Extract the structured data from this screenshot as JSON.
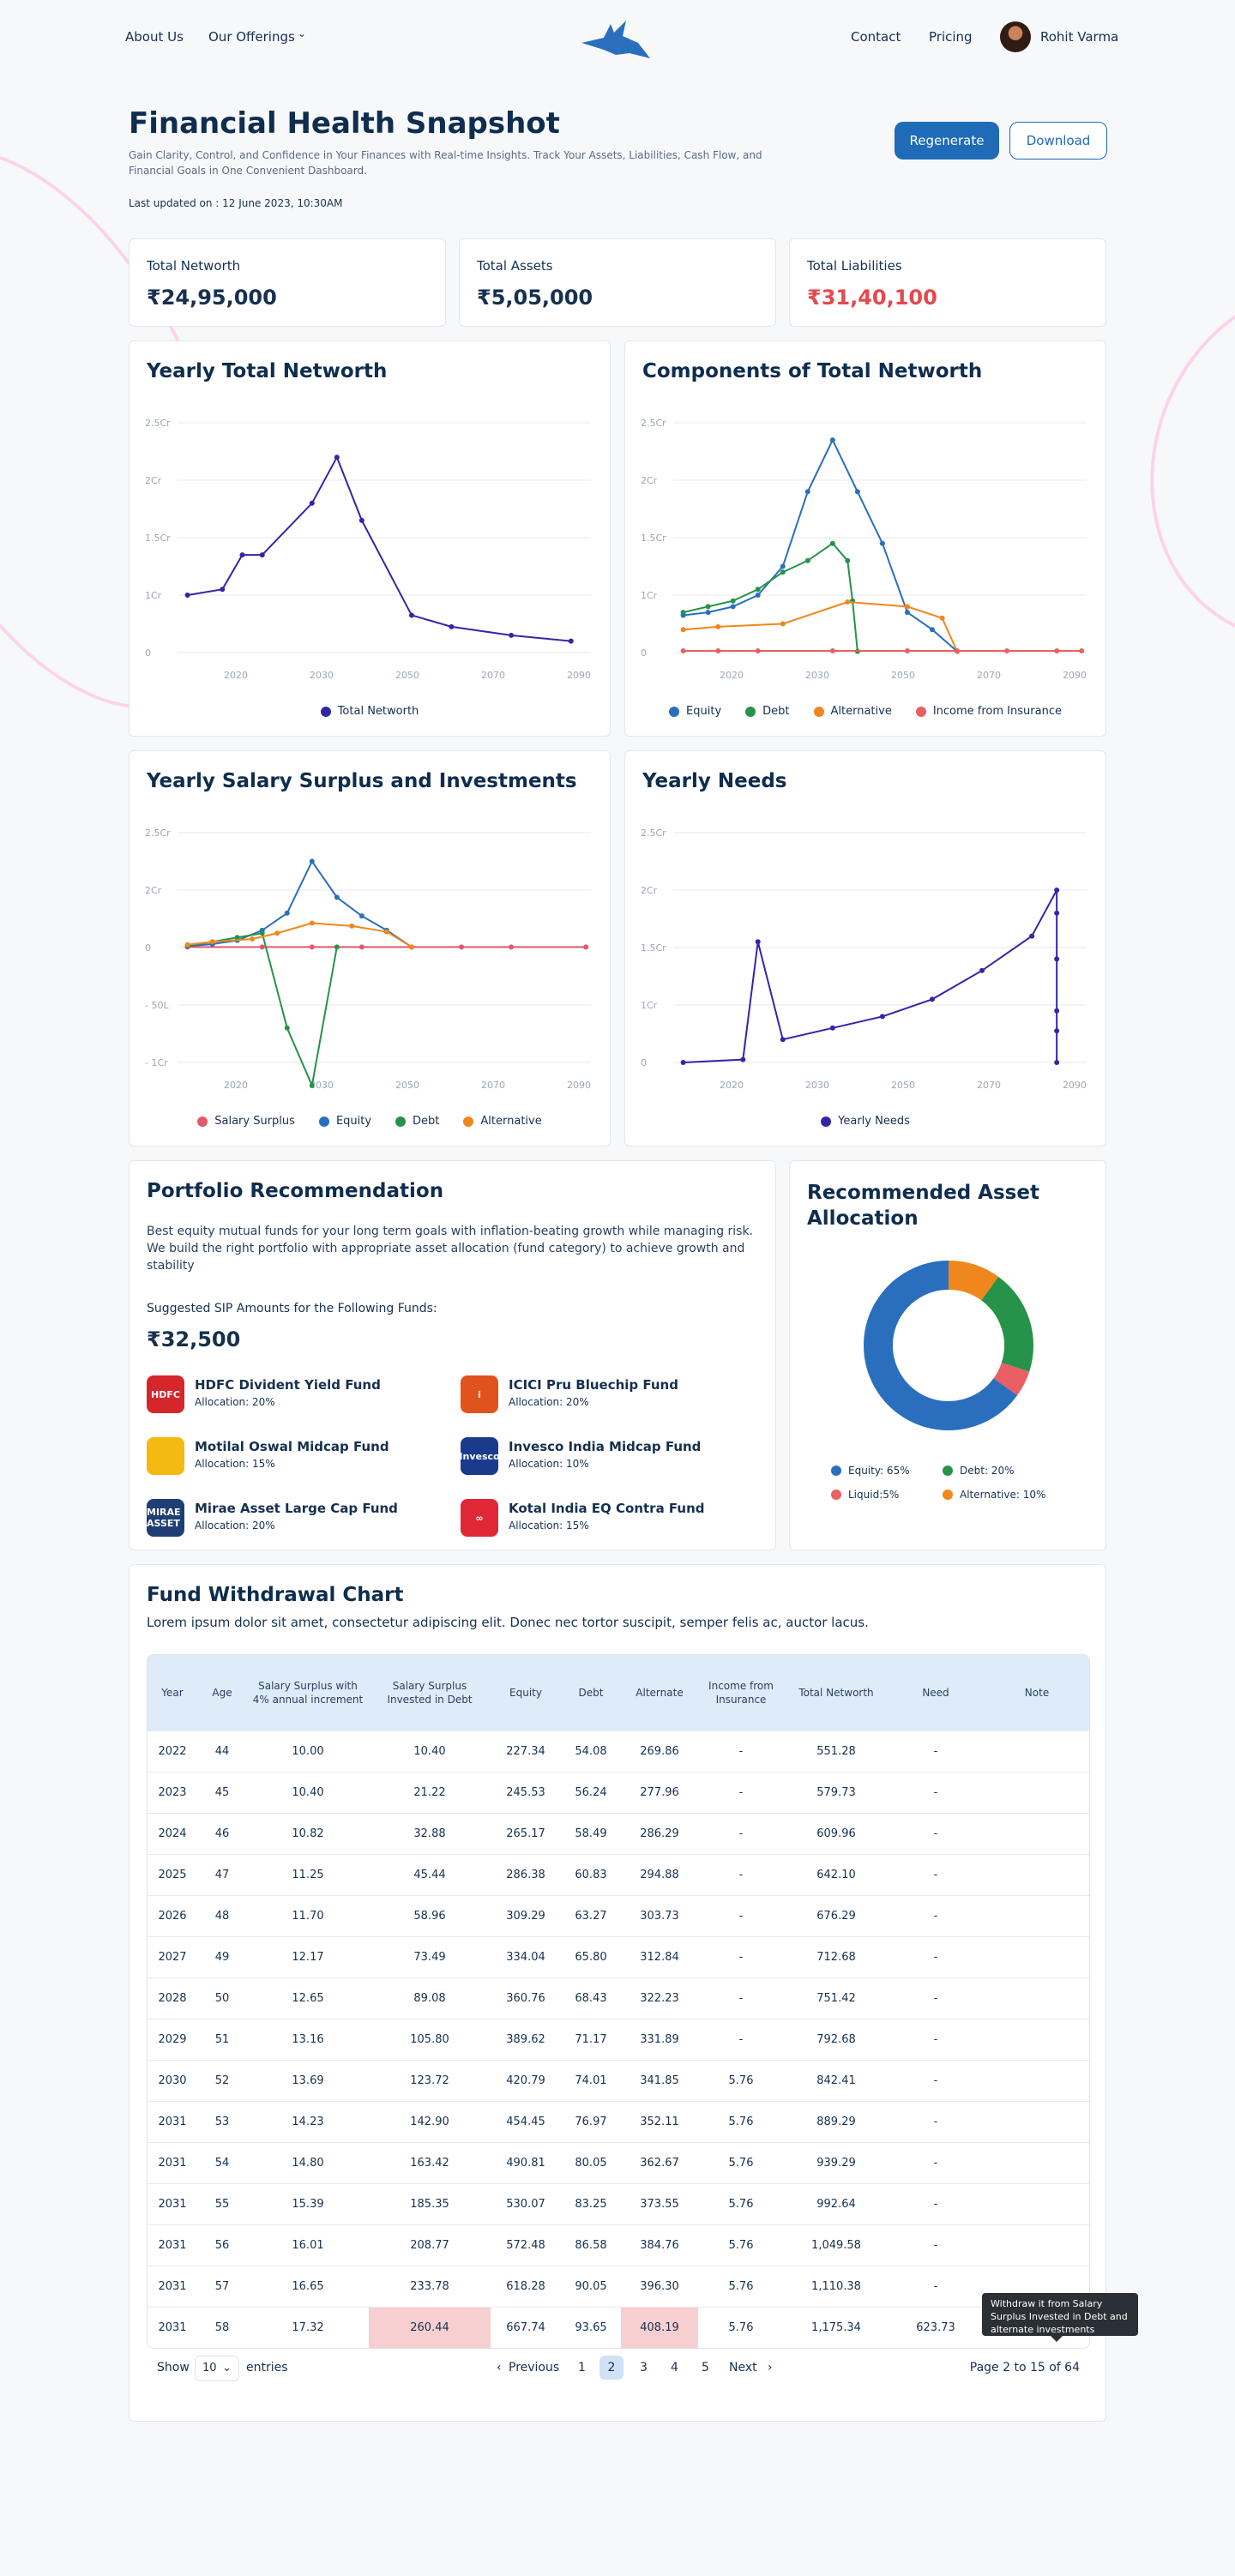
{
  "nav": {
    "about": "About Us",
    "offerings": "Our Offerings",
    "contact": "Contact",
    "pricing": "Pricing",
    "user": "Rohit Varma"
  },
  "header": {
    "title": "Financial Health Snapshot",
    "subtitle": "Gain Clarity, Control, and Confidence in Your Finances with Real-time Insights. Track Your Assets, Liabilities, Cash Flow, and Financial Goals in One Convenient Dashboard.",
    "updated": "Last updated on : 12 June 2023, 10:30AM",
    "regenerate": "Regenerate",
    "download": "Download"
  },
  "stats": [
    {
      "label": "Total Networth",
      "value": "₹24,95,000"
    },
    {
      "label": "Total Assets",
      "value": "₹5,05,000"
    },
    {
      "label": "Total Liabilities",
      "value": "₹31,40,100"
    }
  ],
  "colors": {
    "equity": "#2a6fbd",
    "debt": "#26924a",
    "alternative": "#f0871c",
    "insurance": "#e86060",
    "networth": "#3226a8",
    "surplus": "#e05a6a",
    "liquid": "#ea5f63"
  },
  "chart_data": [
    {
      "type": "line",
      "title": "Yearly Total Networth",
      "yticks": [
        "0",
        "1Cr",
        "1.5Cr",
        "2Cr",
        "2.5Cr"
      ],
      "xticks": [
        "2020",
        "2030",
        "2050",
        "2070",
        "2090"
      ],
      "series": [
        {
          "name": "Total Networth",
          "x": [
            2015,
            2022,
            2026,
            2030,
            2040,
            2045,
            2050,
            2060,
            2068,
            2080,
            2092
          ],
          "y": [
            1.0,
            1.05,
            1.35,
            1.35,
            1.8,
            2.2,
            1.65,
            0.65,
            0.45,
            0.3,
            0.2
          ]
        }
      ]
    },
    {
      "type": "line",
      "title": "Components of Total Networth",
      "yticks": [
        "0",
        "1Cr",
        "1.5Cr",
        "2Cr",
        "2.5Cr"
      ],
      "xticks": [
        "2020",
        "2030",
        "2050",
        "2070",
        "2090"
      ],
      "series": [
        {
          "name": "Equity",
          "x": [
            2015,
            2020,
            2025,
            2030,
            2035,
            2040,
            2045,
            2050,
            2055,
            2060,
            2065,
            2070
          ],
          "y": [
            0.65,
            0.7,
            0.8,
            1.0,
            1.25,
            1.9,
            2.35,
            1.9,
            1.45,
            0.7,
            0.4,
            0.02
          ]
        },
        {
          "name": "Debt",
          "x": [
            2015,
            2020,
            2025,
            2030,
            2035,
            2040,
            2045,
            2048,
            2049,
            2050
          ],
          "y": [
            0.7,
            0.8,
            0.9,
            1.05,
            1.2,
            1.3,
            1.45,
            1.3,
            0.9,
            0.02
          ]
        },
        {
          "name": "Alternative",
          "x": [
            2015,
            2022,
            2035,
            2048,
            2060,
            2067,
            2070
          ],
          "y": [
            0.4,
            0.45,
            0.5,
            0.88,
            0.8,
            0.6,
            0.02
          ]
        },
        {
          "name": "Income from Insurance",
          "x": [
            2015,
            2022,
            2030,
            2045,
            2060,
            2070,
            2080,
            2090,
            2095
          ],
          "y": [
            0.03,
            0.03,
            0.03,
            0.03,
            0.03,
            0.03,
            0.03,
            0.03,
            0.03
          ]
        }
      ]
    },
    {
      "type": "line",
      "title": "Yearly Salary Surplus and Investments",
      "yticks": [
        "- 1Cr",
        "- 50L",
        "0",
        "2Cr",
        "2.5Cr"
      ],
      "xticks": [
        "2020",
        "2030",
        "2050",
        "2070",
        "2090"
      ],
      "series": [
        {
          "name": "Salary Surplus",
          "x": [
            2015,
            2030,
            2040,
            2050,
            2060,
            2070,
            2080,
            2095
          ],
          "y": [
            0.02,
            0.02,
            0.02,
            0.02,
            0.02,
            0.02,
            0.02,
            0.02
          ]
        },
        {
          "name": "Equity",
          "x": [
            2015,
            2020,
            2025,
            2030,
            2035,
            2040,
            2045,
            2050,
            2055,
            2060
          ],
          "y": [
            0.05,
            0.12,
            0.25,
            0.6,
            1.2,
            2.25,
            1.75,
            1.1,
            0.6,
            0.02
          ]
        },
        {
          "name": "Debt",
          "x": [
            2015,
            2020,
            2025,
            2030,
            2035,
            2040,
            2045
          ],
          "y": [
            0.06,
            0.2,
            0.35,
            0.5,
            -0.7,
            -1.2,
            0.02
          ]
        },
        {
          "name": "Alternative",
          "x": [
            2015,
            2020,
            2028,
            2033,
            2040,
            2048,
            2055,
            2060
          ],
          "y": [
            0.1,
            0.2,
            0.3,
            0.5,
            0.85,
            0.75,
            0.55,
            0.02
          ]
        }
      ]
    },
    {
      "type": "line",
      "title": "Yearly Needs",
      "yticks": [
        "0",
        "1Cr",
        "1.5Cr",
        "2Cr",
        "2.5Cr"
      ],
      "xticks": [
        "2020",
        "2030",
        "2050",
        "2070",
        "2090"
      ],
      "series": [
        {
          "name": "Yearly Needs",
          "x": [
            2015,
            2027,
            2030,
            2035,
            2045,
            2055,
            2065,
            2075,
            2085,
            2090,
            2090,
            2090,
            2090,
            2090,
            2090
          ],
          "y": [
            0,
            0.05,
            1.55,
            0.4,
            0.6,
            0.8,
            1.05,
            1.3,
            1.6,
            2.0,
            1.8,
            1.4,
            0.9,
            0.55,
            0
          ]
        }
      ]
    },
    {
      "type": "pie",
      "title": "Recommended Asset Allocation",
      "categories": [
        "Equity",
        "Debt",
        "Liquid",
        "Alternative"
      ],
      "values": [
        65,
        20,
        5,
        10
      ],
      "legend": [
        "Equity: 65%",
        "Debt: 20%",
        "Liquid:5%",
        "Alternative: 10%"
      ]
    }
  ],
  "portfolio": {
    "title": "Portfolio Recommendation",
    "desc": "Best equity mutual funds for your long term goals with inflation-beating growth while managing risk. We build the right portfolio with appropriate asset allocation (fund category) to achieve growth and stability",
    "sip_label": "Suggested SIP Amounts for the Following Funds:",
    "sip_value": "₹32,500",
    "funds": [
      {
        "name": "HDFC Divident Yield Fund",
        "alloc": "Allocation: 20%",
        "icon": "HDFC",
        "color": "#d5262c"
      },
      {
        "name": "ICICI Pru Bluechip Fund",
        "alloc": "Allocation: 20%",
        "icon": "i",
        "color": "#e1531c"
      },
      {
        "name": "Motilal Oswal Midcap Fund",
        "alloc": "Allocation: 15%",
        "icon": "",
        "color": "#f5b914"
      },
      {
        "name": "Invesco India Midcap Fund",
        "alloc": "Allocation: 10%",
        "icon": "Invesco",
        "color": "#1b3a8c"
      },
      {
        "name": "Mirae Asset Large Cap Fund",
        "alloc": "Allocation: 20%",
        "icon": "MIRAE ASSET",
        "color": "#1f3f74"
      },
      {
        "name": "Kotal India EQ Contra Fund",
        "alloc": "Allocation: 15%",
        "icon": "∞",
        "color": "#e02735"
      }
    ]
  },
  "withdrawal": {
    "title": "Fund Withdrawal Chart",
    "desc": "Lorem ipsum dolor sit amet, consectetur adipiscing elit. Donec nec tortor suscipit, semper felis ac, auctor lacus.",
    "headers": [
      "Year",
      "Age",
      "Salary Surplus with 4% annual increment",
      "Salary Surplus Invested in Debt",
      "Equity",
      "Debt",
      "Alternate",
      "Income from Insurance",
      "Total Networth",
      "Need",
      "Note"
    ],
    "rows": [
      [
        "2022",
        "44",
        "10.00",
        "10.40",
        "227.34",
        "54.08",
        "269.86",
        "-",
        "551.28",
        "-",
        ""
      ],
      [
        "2023",
        "45",
        "10.40",
        "21.22",
        "245.53",
        "56.24",
        "277.96",
        "-",
        "579.73",
        "-",
        ""
      ],
      [
        "2024",
        "46",
        "10.82",
        "32.88",
        "265.17",
        "58.49",
        "286.29",
        "-",
        "609.96",
        "-",
        ""
      ],
      [
        "2025",
        "47",
        "11.25",
        "45.44",
        "286.38",
        "60.83",
        "294.88",
        "-",
        "642.10",
        "-",
        ""
      ],
      [
        "2026",
        "48",
        "11.70",
        "58.96",
        "309.29",
        "63.27",
        "303.73",
        "-",
        "676.29",
        "-",
        ""
      ],
      [
        "2027",
        "49",
        "12.17",
        "73.49",
        "334.04",
        "65.80",
        "312.84",
        "-",
        "712.68",
        "-",
        ""
      ],
      [
        "2028",
        "50",
        "12.65",
        "89.08",
        "360.76",
        "68.43",
        "322.23",
        "-",
        "751.42",
        "-",
        ""
      ],
      [
        "2029",
        "51",
        "13.16",
        "105.80",
        "389.62",
        "71.17",
        "331.89",
        "-",
        "792.68",
        "-",
        ""
      ],
      [
        "2030",
        "52",
        "13.69",
        "123.72",
        "420.79",
        "74.01",
        "341.85",
        "5.76",
        "842.41",
        "-",
        ""
      ],
      [
        "2031",
        "53",
        "14.23",
        "142.90",
        "454.45",
        "76.97",
        "352.11",
        "5.76",
        "889.29",
        "-",
        ""
      ],
      [
        "2031",
        "54",
        "14.80",
        "163.42",
        "490.81",
        "80.05",
        "362.67",
        "5.76",
        "939.29",
        "-",
        ""
      ],
      [
        "2031",
        "55",
        "15.39",
        "185.35",
        "530.07",
        "83.25",
        "373.55",
        "5.76",
        "992.64",
        "-",
        ""
      ],
      [
        "2031",
        "56",
        "16.01",
        "208.77",
        "572.48",
        "86.58",
        "384.76",
        "5.76",
        "1,049.58",
        "-",
        ""
      ],
      [
        "2031",
        "57",
        "16.65",
        "233.78",
        "618.28",
        "90.05",
        "396.30",
        "5.76",
        "1,110.38",
        "-",
        ""
      ],
      [
        "2031",
        "58",
        "17.32",
        "260.44",
        "667.74",
        "93.65",
        "408.19",
        "5.76",
        "1,175.34",
        "623.73",
        ""
      ]
    ],
    "tooltip": "Withdraw it from Salary Surplus Invested in Debt and alternate investments",
    "pager": {
      "show": "Show",
      "per_page": "10",
      "entries": "entries",
      "previous": "Previous",
      "pages": [
        "1",
        "2",
        "3",
        "4",
        "5"
      ],
      "next": "Next",
      "info": "Page 2 to 15 of 64"
    }
  }
}
